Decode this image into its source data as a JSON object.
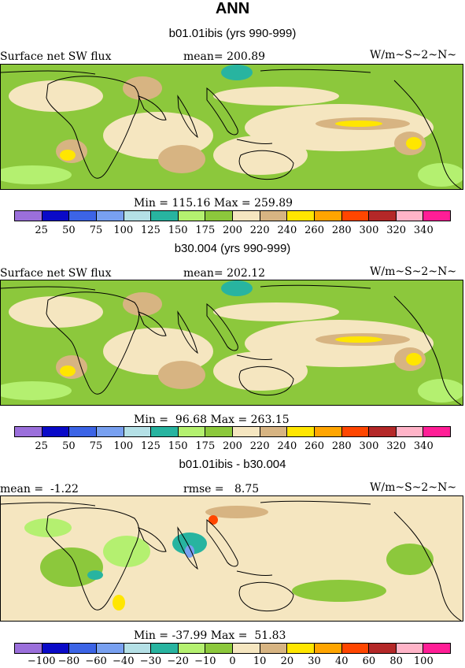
{
  "title": "ANN",
  "colors": {
    "levels": [
      "#9b6fdb",
      "#0a0ac8",
      "#3c64e6",
      "#78a0f0",
      "#b4e0e6",
      "#28b4a0",
      "#b4f070",
      "#8cc83c",
      "#f5e6c0",
      "#d7b482",
      "#ffe600",
      "#ffa500",
      "#ff4600",
      "#b42828",
      "#ffb4c8",
      "#ff1e96"
    ],
    "coast": "#000000"
  },
  "panels": [
    {
      "title": "b01.01ibis (yrs 990-999)",
      "left_label": "Surface net SW flux",
      "mid_label": "mean= 200.89",
      "units": "W/m~S~2~N~",
      "minmax": "Min = 115.16 Max = 259.89",
      "ticks": [
        "25",
        "50",
        "75",
        "100",
        "125",
        "150",
        "175",
        "200",
        "220",
        "240",
        "260",
        "280",
        "300",
        "320",
        "340"
      ]
    },
    {
      "title": "b30.004 (yrs 990-999)",
      "left_label": "Surface net SW flux",
      "mid_label": "mean= 202.12",
      "units": "W/m~S~2~N~",
      "minmax": "Min =  96.68 Max = 263.15",
      "ticks": [
        "25",
        "50",
        "75",
        "100",
        "125",
        "150",
        "175",
        "200",
        "220",
        "240",
        "260",
        "280",
        "300",
        "320",
        "340"
      ]
    },
    {
      "title": "b01.01ibis - b30.004",
      "left_label": "mean =  -1.22",
      "mid_label": "rmse =   8.75",
      "units": "W/m~S~2~N~",
      "minmax": "Min = -37.99 Max =  51.83",
      "ticks": [
        "−100",
        "−80",
        "−60",
        "−40",
        "−30",
        "−20",
        "−10",
        "0",
        "10",
        "20",
        "30",
        "40",
        "60",
        "80",
        "100"
      ]
    }
  ]
}
